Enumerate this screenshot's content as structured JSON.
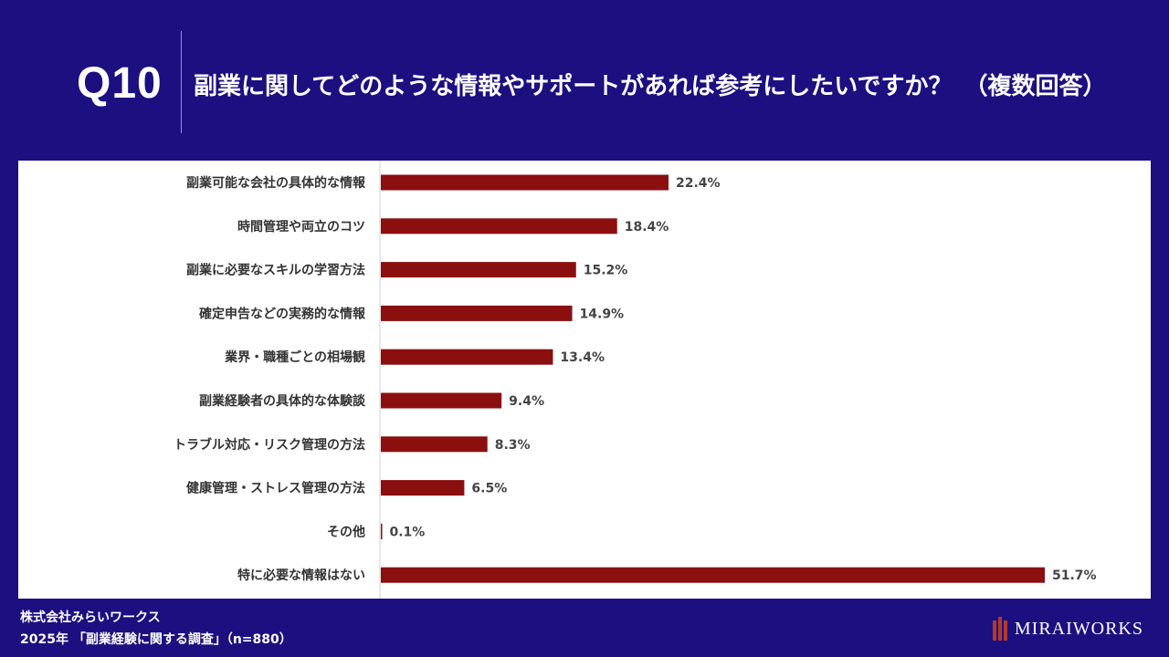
{
  "header": {
    "question_number": "Q10",
    "question_text": "副業に関してどのような情報やサポートがあれば参考にしたいですか？　（複数回答）"
  },
  "chart_data": {
    "type": "bar",
    "orientation": "horizontal",
    "categories": [
      "副業可能な会社の具体的な情報",
      "時間管理や両立のコツ",
      "副業に必要なスキルの学習方法",
      "確定申告などの実務的な情報",
      "業界・職種ごとの相場観",
      "副業経験者の具体的な体験談",
      "トラブル対応・リスク管理の方法",
      "健康管理・ストレス管理の方法",
      "その他",
      "特に必要な情報はない"
    ],
    "values": [
      22.4,
      18.4,
      15.2,
      14.9,
      13.4,
      9.4,
      8.3,
      6.5,
      0.1,
      51.7
    ],
    "value_labels": [
      "22.4%",
      "18.4%",
      "15.2%",
      "14.9%",
      "13.4%",
      "9.4%",
      "8.3%",
      "6.5%",
      "0.1%",
      "51.7%"
    ],
    "unit": "%",
    "xlim": [
      0,
      55
    ],
    "bar_color": "#8b0f0f",
    "grid": false
  },
  "footer": {
    "company": "株式会社みらいワークス",
    "source": "2025年 「副業経験に関する調査」（n=880）",
    "brand": "MIRAIWORKS"
  },
  "colors": {
    "background": "#1c0f80",
    "panel": "#ffffff",
    "bar": "#8b0f0f",
    "brand_accent": "#b23a2a"
  }
}
